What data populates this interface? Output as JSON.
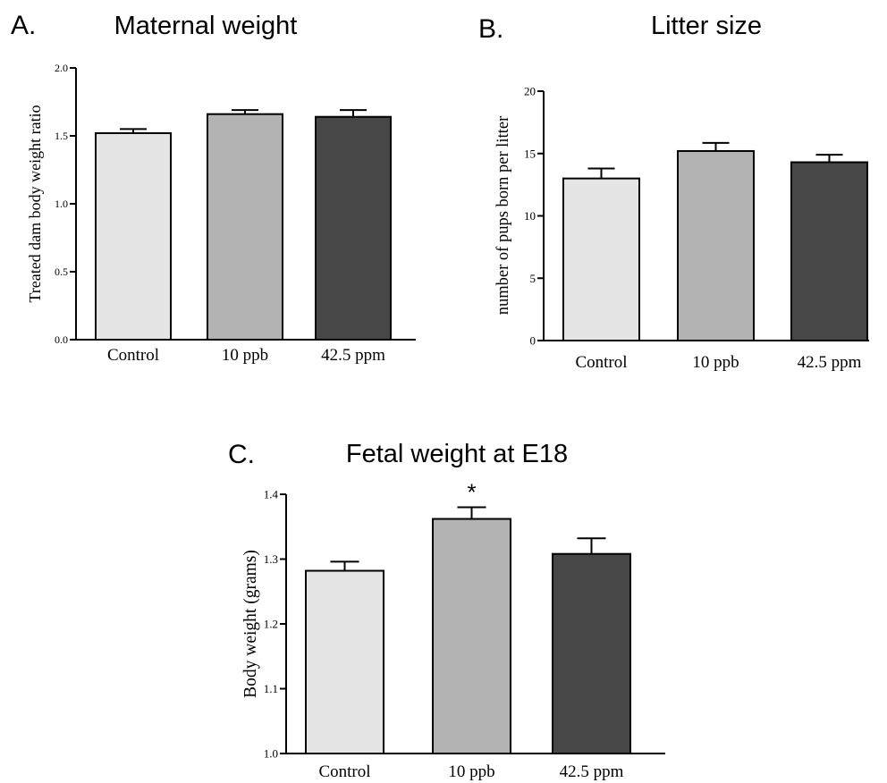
{
  "chart_data": [
    {
      "type": "bar",
      "panel_letter": "A.",
      "title": "Maternal weight",
      "ylabel": "Treated dam body weight ratio",
      "categories": [
        "Control",
        "10 ppb",
        "42.5 ppm"
      ],
      "values": [
        1.52,
        1.66,
        1.64
      ],
      "errors": [
        0.03,
        0.03,
        0.05
      ],
      "ylim": [
        0.0,
        2.0
      ],
      "yticks": [
        "0.0",
        "0.5",
        "1.0",
        "1.5",
        "2.0"
      ],
      "annotations": [
        "",
        "",
        ""
      ],
      "colors": [
        "#e5e5e5",
        "#b3b3b3",
        "#474747"
      ],
      "grid": false,
      "legend": "none"
    },
    {
      "type": "bar",
      "panel_letter": "B.",
      "title": "Litter size",
      "ylabel": "number of pups born per litter",
      "categories": [
        "Control",
        "10 ppb",
        "42.5 ppm"
      ],
      "values": [
        13.0,
        15.2,
        14.3
      ],
      "errors": [
        0.8,
        0.65,
        0.6
      ],
      "ylim": [
        0,
        20
      ],
      "yticks": [
        "0",
        "5",
        "10",
        "15",
        "20"
      ],
      "annotations": [
        "",
        "",
        ""
      ],
      "colors": [
        "#e5e5e5",
        "#b3b3b3",
        "#474747"
      ],
      "grid": false,
      "legend": "none"
    },
    {
      "type": "bar",
      "panel_letter": "C.",
      "title": "Fetal weight at E18",
      "ylabel": "Body weight (grams)",
      "categories": [
        "Control",
        "10 ppb",
        "42.5 ppm"
      ],
      "values": [
        1.282,
        1.362,
        1.308
      ],
      "errors": [
        0.014,
        0.018,
        0.024
      ],
      "ylim": [
        1.0,
        1.4
      ],
      "yticks": [
        "1.0",
        "1.1",
        "1.2",
        "1.3",
        "1.4"
      ],
      "annotations": [
        "",
        "*",
        ""
      ],
      "colors": [
        "#e5e5e5",
        "#b3b3b3",
        "#474747"
      ],
      "grid": false,
      "legend": "none"
    }
  ]
}
